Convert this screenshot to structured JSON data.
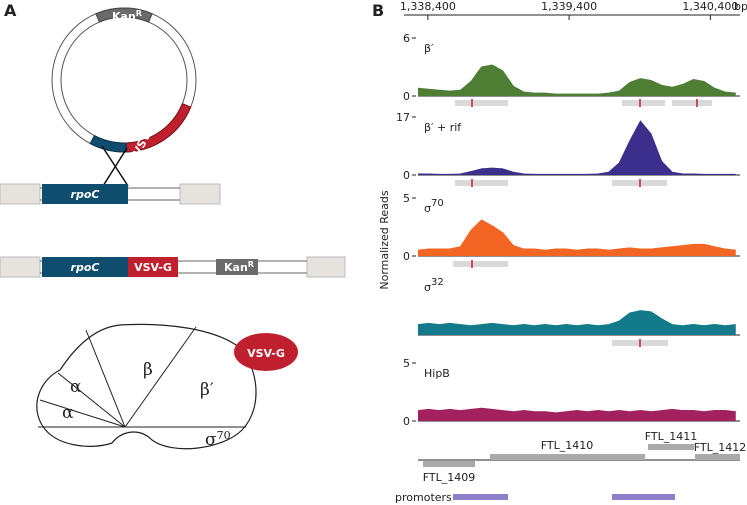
{
  "panel_a": {
    "label": "A",
    "plasmid": {
      "marker": "Kan",
      "marker_sup": "R",
      "tag": "VSV-G"
    },
    "genome": {
      "gene": "rpoC"
    },
    "fusion": {
      "gene": "rpoC",
      "tag": "VSV-G",
      "marker": "Kan",
      "marker_sup": "R"
    },
    "rnap": {
      "subunits": [
        "α",
        "α",
        "β",
        "β′"
      ],
      "sigma": "σ",
      "sigma_sup": "70",
      "tag": "VSV-G"
    }
  },
  "chart_data": {
    "type": "area",
    "label": "B",
    "ylabel": "Normalized Reads",
    "x_unit": "bp",
    "xlim": [
      1338330,
      1340610
    ],
    "xticks": [
      {
        "value": 1338400,
        "label": "1,338,400"
      },
      {
        "value": 1339400,
        "label": "1,339,400"
      },
      {
        "value": 1340400,
        "label": "1,340,400"
      }
    ],
    "x": [
      1338330,
      1338405,
      1338480,
      1338555,
      1338630,
      1338705,
      1338780,
      1338855,
      1338930,
      1339005,
      1339080,
      1339155,
      1339230,
      1339305,
      1339380,
      1339455,
      1339530,
      1339605,
      1339680,
      1339755,
      1339830,
      1339905,
      1339980,
      1340055,
      1340130,
      1340205,
      1340280,
      1340355,
      1340430,
      1340505,
      1340580
    ],
    "series": [
      {
        "name": "β′",
        "color": "#4e7d34",
        "ylim": [
          0,
          6
        ],
        "yticks": [
          0,
          6
        ],
        "values": [
          0.8,
          0.7,
          0.6,
          0.5,
          0.6,
          1.5,
          3.0,
          3.2,
          2.6,
          1.0,
          0.4,
          0.3,
          0.3,
          0.2,
          0.2,
          0.2,
          0.2,
          0.2,
          0.3,
          0.5,
          1.4,
          1.8,
          1.6,
          1.1,
          0.9,
          1.2,
          1.7,
          1.5,
          0.8,
          0.4,
          0.3
        ]
      },
      {
        "name": "β′ + rif",
        "color": "#3b2e8c",
        "ylim": [
          0,
          17
        ],
        "yticks": [
          0,
          17
        ],
        "values": [
          0.3,
          0.3,
          0.2,
          0.2,
          0.3,
          1.0,
          1.8,
          2.0,
          1.8,
          0.8,
          0.3,
          0.2,
          0.2,
          0.2,
          0.2,
          0.2,
          0.2,
          0.3,
          0.8,
          3.5,
          10,
          15.8,
          12,
          4,
          0.8,
          0.3,
          0.3,
          0.2,
          0.2,
          0.2,
          0.2
        ]
      },
      {
        "name": "σ",
        "name_sup": "70",
        "color": "#f26522",
        "ylim": [
          0,
          5
        ],
        "yticks": [
          0,
          5
        ],
        "values": [
          0.5,
          0.6,
          0.6,
          0.6,
          0.8,
          2.2,
          3.1,
          2.6,
          2.0,
          0.9,
          0.6,
          0.6,
          0.5,
          0.6,
          0.6,
          0.5,
          0.6,
          0.6,
          0.5,
          0.6,
          0.7,
          0.6,
          0.6,
          0.7,
          0.8,
          0.9,
          1.0,
          1.0,
          0.8,
          0.6,
          0.5
        ]
      },
      {
        "name": "σ",
        "name_sup": "32",
        "color": "#127a8a",
        "ylim": [
          0,
          5
        ],
        "yticks": [],
        "values": [
          0.9,
          1.0,
          0.9,
          1.0,
          0.9,
          0.8,
          0.9,
          1.0,
          0.9,
          0.8,
          0.9,
          0.8,
          0.9,
          0.8,
          0.9,
          0.8,
          0.9,
          0.8,
          0.9,
          1.2,
          1.9,
          2.1,
          2.0,
          1.4,
          0.9,
          0.8,
          0.9,
          0.8,
          0.9,
          0.8,
          0.9
        ]
      },
      {
        "name": "HipB",
        "color": "#a3215f",
        "ylim": [
          0,
          5
        ],
        "yticks": [
          0,
          5
        ],
        "values": [
          0.9,
          1.0,
          0.9,
          1.0,
          0.9,
          1.0,
          1.1,
          1.0,
          0.9,
          0.8,
          0.9,
          0.8,
          0.8,
          0.7,
          0.8,
          0.9,
          0.8,
          0.9,
          0.8,
          0.9,
          0.8,
          0.9,
          0.8,
          0.9,
          1.0,
          0.9,
          0.9,
          0.8,
          0.9,
          0.9,
          0.8
        ]
      }
    ],
    "genes": [
      "FTL_1409",
      "FTL_1410",
      "FTL_1411",
      "FTL_1412"
    ],
    "promoters": "promoters"
  }
}
